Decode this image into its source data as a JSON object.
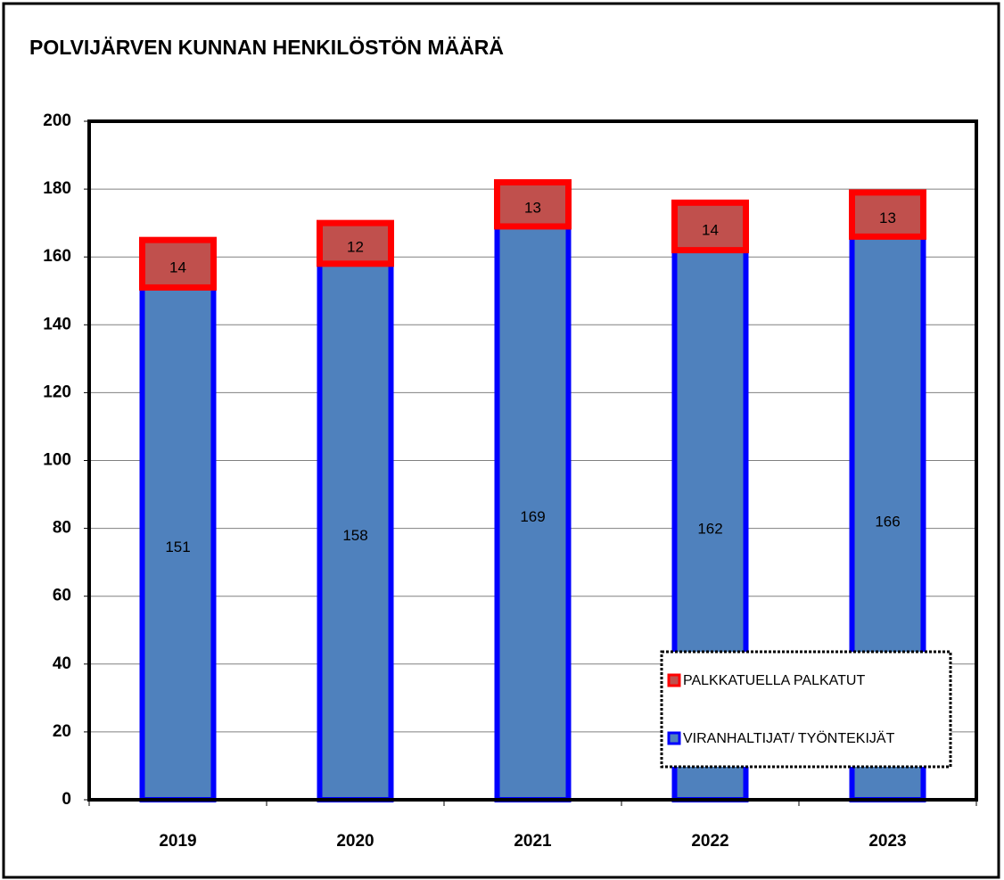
{
  "chart_data": {
    "type": "stacked_bar",
    "title": "POLVIJÄRVEN KUNNAN HENKILÖSTÖN MÄÄRÄ",
    "categories": [
      "2019",
      "2020",
      "2021",
      "2022",
      "2023"
    ],
    "series": [
      {
        "name": "VIRANHALTIJAT/ TYÖNTEKIJÄT",
        "color": "#4f81bd",
        "edge": "#0000ff",
        "values": [
          151,
          158,
          169,
          162,
          166
        ]
      },
      {
        "name": "PALKKATUELLA PALKATUT",
        "color": "#c0504d",
        "edge": "#ff0000",
        "values": [
          14,
          12,
          13,
          14,
          13
        ]
      }
    ],
    "ylim": [
      0,
      200
    ],
    "yticks": [
      0,
      20,
      40,
      60,
      80,
      100,
      120,
      140,
      160,
      180,
      200
    ],
    "grid": true,
    "legend": "lower right"
  }
}
